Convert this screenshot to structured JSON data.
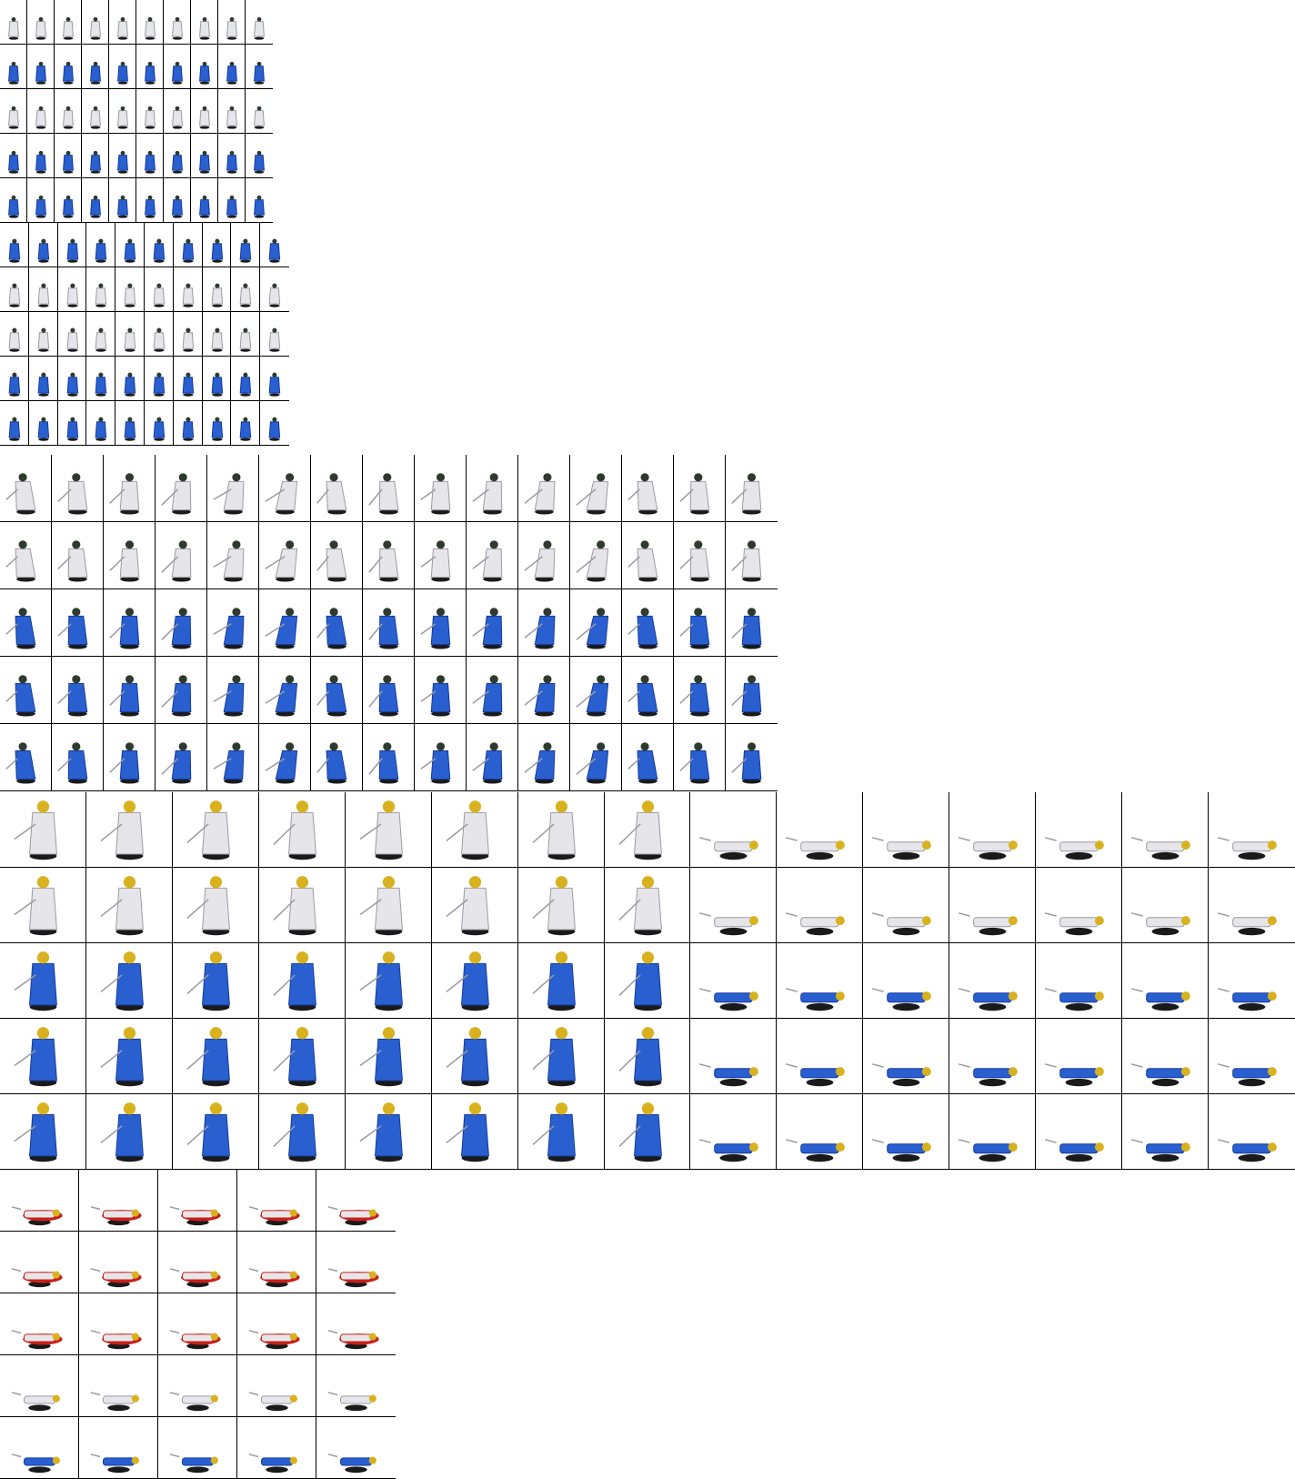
{
  "sheet_title": "",
  "colors": {
    "robe_blue": "#2a5fd0",
    "robe_blue_dark": "#123a9a",
    "robe_white": "#e6e6ea",
    "robe_grey": "#9a9aa2",
    "helmet_gold": "#d8b21e",
    "head_dark": "#2e3a2e",
    "shadow": "#1a1a1a",
    "blood_red": "#c8201a",
    "grid_line": "#000000",
    "background": "#ffffff"
  },
  "sections": [
    {
      "name": "idle",
      "rows": 10,
      "cols": 10,
      "frame_count": 100,
      "row_poses": [
        "stand-white",
        "stand-blue",
        "stand-white",
        "stand-blue",
        "stand-blue",
        "turn-blue",
        "turn-white",
        "turn-white",
        "turn-blue",
        "turn-blue"
      ]
    },
    {
      "name": "attack",
      "rows": 5,
      "cols": 15,
      "frame_count": 75,
      "row_poses": [
        "attack-white",
        "attack-white",
        "attack-blue",
        "attack-blue",
        "attack-blue"
      ]
    },
    {
      "name": "death",
      "rows": 5,
      "cols": 15,
      "frame_count": 75,
      "row_poses": [
        "die-white",
        "die-white",
        "die-blue",
        "die-blue",
        "die-blue"
      ]
    },
    {
      "name": "decay",
      "rows": 5,
      "cols": 5,
      "frame_count": 25,
      "row_poses": [
        "decay-red",
        "decay-red",
        "decay-red",
        "decay-white",
        "decay-blue"
      ]
    }
  ]
}
